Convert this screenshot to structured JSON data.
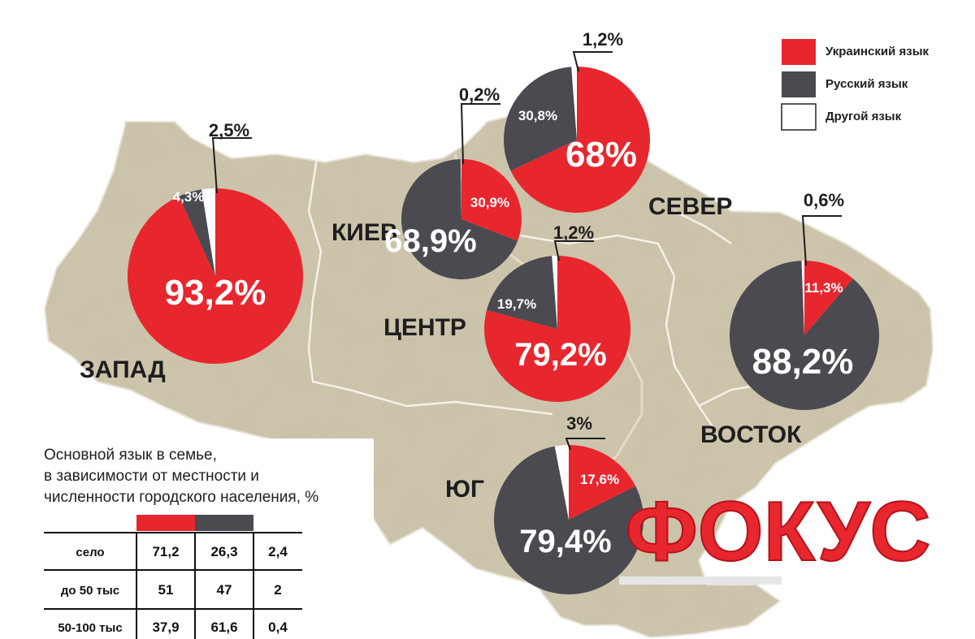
{
  "colors": {
    "ukrainian": "#e8262e",
    "russian": "#4a4a50",
    "other": "#ffffff",
    "map_fill": "#cfc6ad",
    "map_border": "#f2efe6",
    "brand": "#e8262e"
  },
  "legend": [
    {
      "key": "ukrainian",
      "label": "Украинский язык"
    },
    {
      "key": "russian",
      "label": "Русский язык"
    },
    {
      "key": "other",
      "label": "Другой язык"
    }
  ],
  "regions": [
    {
      "id": "zapad",
      "name": "ЗАПАД"
    },
    {
      "id": "kiev",
      "name": "КИЕВ"
    },
    {
      "id": "sever",
      "name": "СЕВЕР"
    },
    {
      "id": "centr",
      "name": "ЦЕНТР"
    },
    {
      "id": "vostok",
      "name": "ВОСТОК"
    },
    {
      "id": "yug",
      "name": "ЮГ"
    }
  ],
  "chart_data": {
    "type": "pie",
    "series_keys": [
      "ukrainian",
      "russian",
      "other"
    ],
    "series_names": [
      "Украинский язык",
      "Русский язык",
      "Другой язык"
    ],
    "pies": [
      {
        "region": "zapad",
        "values": [
          93.2,
          4.3,
          2.5
        ],
        "labels": [
          "93,2%",
          "4,3%",
          "2,5%"
        ]
      },
      {
        "region": "kiev",
        "values": [
          30.9,
          68.9,
          0.2
        ],
        "labels": [
          "30,9%",
          "68,9%",
          "0,2%"
        ]
      },
      {
        "region": "sever",
        "values": [
          68,
          30.8,
          1.2
        ],
        "labels": [
          "68%",
          "30,8%",
          "1,2%"
        ]
      },
      {
        "region": "centr",
        "values": [
          79.2,
          19.7,
          1.2
        ],
        "labels": [
          "79,2%",
          "19,7%",
          "1,2%"
        ]
      },
      {
        "region": "vostok",
        "values": [
          11.3,
          88.2,
          0.6
        ],
        "labels": [
          "11,3%",
          "88,2%",
          "0,6%"
        ]
      },
      {
        "region": "yug",
        "values": [
          17.6,
          79.4,
          3
        ],
        "labels": [
          "17,6%",
          "79,4%",
          "3%"
        ]
      }
    ]
  },
  "table": {
    "title_lines": [
      "Основной язык в семье,",
      "в зависимости от местности и",
      "численности городского населения, %"
    ],
    "column_keys": [
      "ukrainian",
      "russian",
      "other"
    ],
    "rows": [
      {
        "label": "село",
        "values": [
          "71,2",
          "26,3",
          "2,4"
        ]
      },
      {
        "label": "до 50 тыс",
        "values": [
          "51",
          "47",
          "2"
        ]
      },
      {
        "label": "50-100 тыс",
        "values": [
          "37,9",
          "61,6",
          "0,4"
        ]
      }
    ]
  },
  "brand": "ФОКУС"
}
